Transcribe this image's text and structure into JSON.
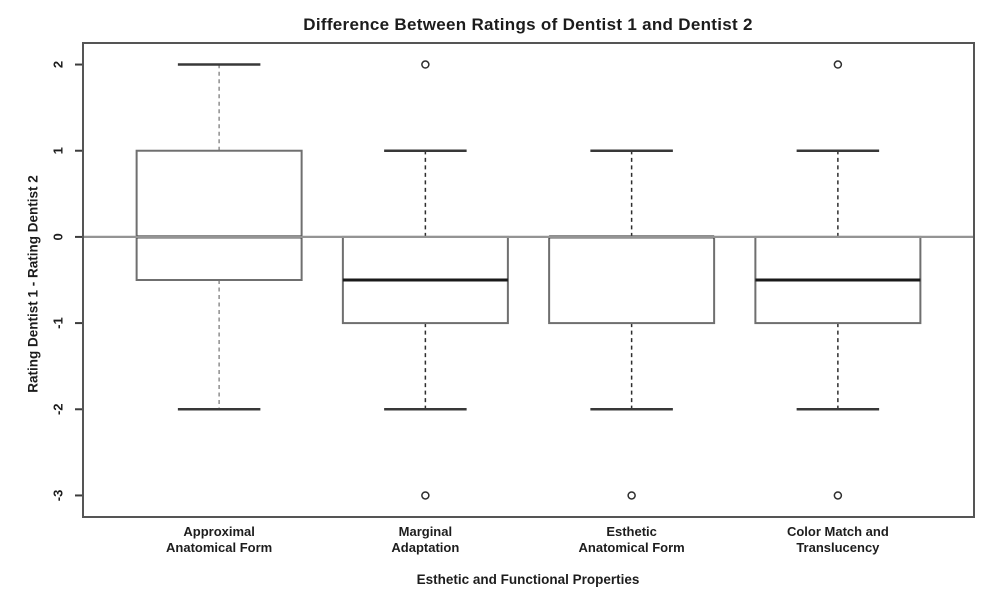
{
  "title": "Difference Between Ratings of Dentist 1 and Dentist 2",
  "chart_data": {
    "type": "boxplot",
    "title": "Difference Between Ratings of Dentist 1 and Dentist 2",
    "xlabel": "Esthetic and Functional Properties",
    "ylabel": "Rating Dentist 1 - Rating Dentist 2",
    "ylim": [
      -3.25,
      2.25
    ],
    "yticks": [
      2,
      1,
      0,
      -1,
      -2,
      -3
    ],
    "reference_line_y": 0,
    "grid": false,
    "legend": "none",
    "categories": [
      [
        "Approximal",
        "Anatomical Form"
      ],
      [
        "Marginal",
        "Adaptation"
      ],
      [
        "Esthetic",
        "Anatomical Form"
      ],
      [
        "Color Match and",
        "Translucency"
      ]
    ],
    "series": [
      {
        "name": "Approximal Anatomical Form",
        "q1": -0.5,
        "median": 0,
        "q3": 1,
        "whisker_low": -2,
        "whisker_high": 2,
        "outliers": []
      },
      {
        "name": "Marginal Adaptation",
        "q1": -1,
        "median": -0.5,
        "q3": 0,
        "whisker_low": -2,
        "whisker_high": 1,
        "outliers": [
          2,
          -3
        ]
      },
      {
        "name": "Esthetic Anatomical Form",
        "q1": -1,
        "median": 0,
        "q3": 0,
        "whisker_low": -2,
        "whisker_high": 1,
        "outliers": [
          -3
        ]
      },
      {
        "name": "Color Match and Translucency",
        "q1": -1,
        "median": -0.5,
        "q3": 0,
        "whisker_low": -2,
        "whisker_high": 1,
        "outliers": [
          2,
          -3
        ]
      }
    ],
    "colors": {
      "border": "#555555",
      "box_stroke": "#6f6f6f",
      "box_fill": "#ffffff",
      "median": "#1a1a1a",
      "reference_line": "#949494",
      "whisker": "#2e2e2e",
      "whisker_first": "#8e8e8e",
      "cap": "#383838",
      "outlier": "#2f2f2f",
      "tick": "#3d3d3d",
      "text": "#1d1d1d"
    }
  }
}
